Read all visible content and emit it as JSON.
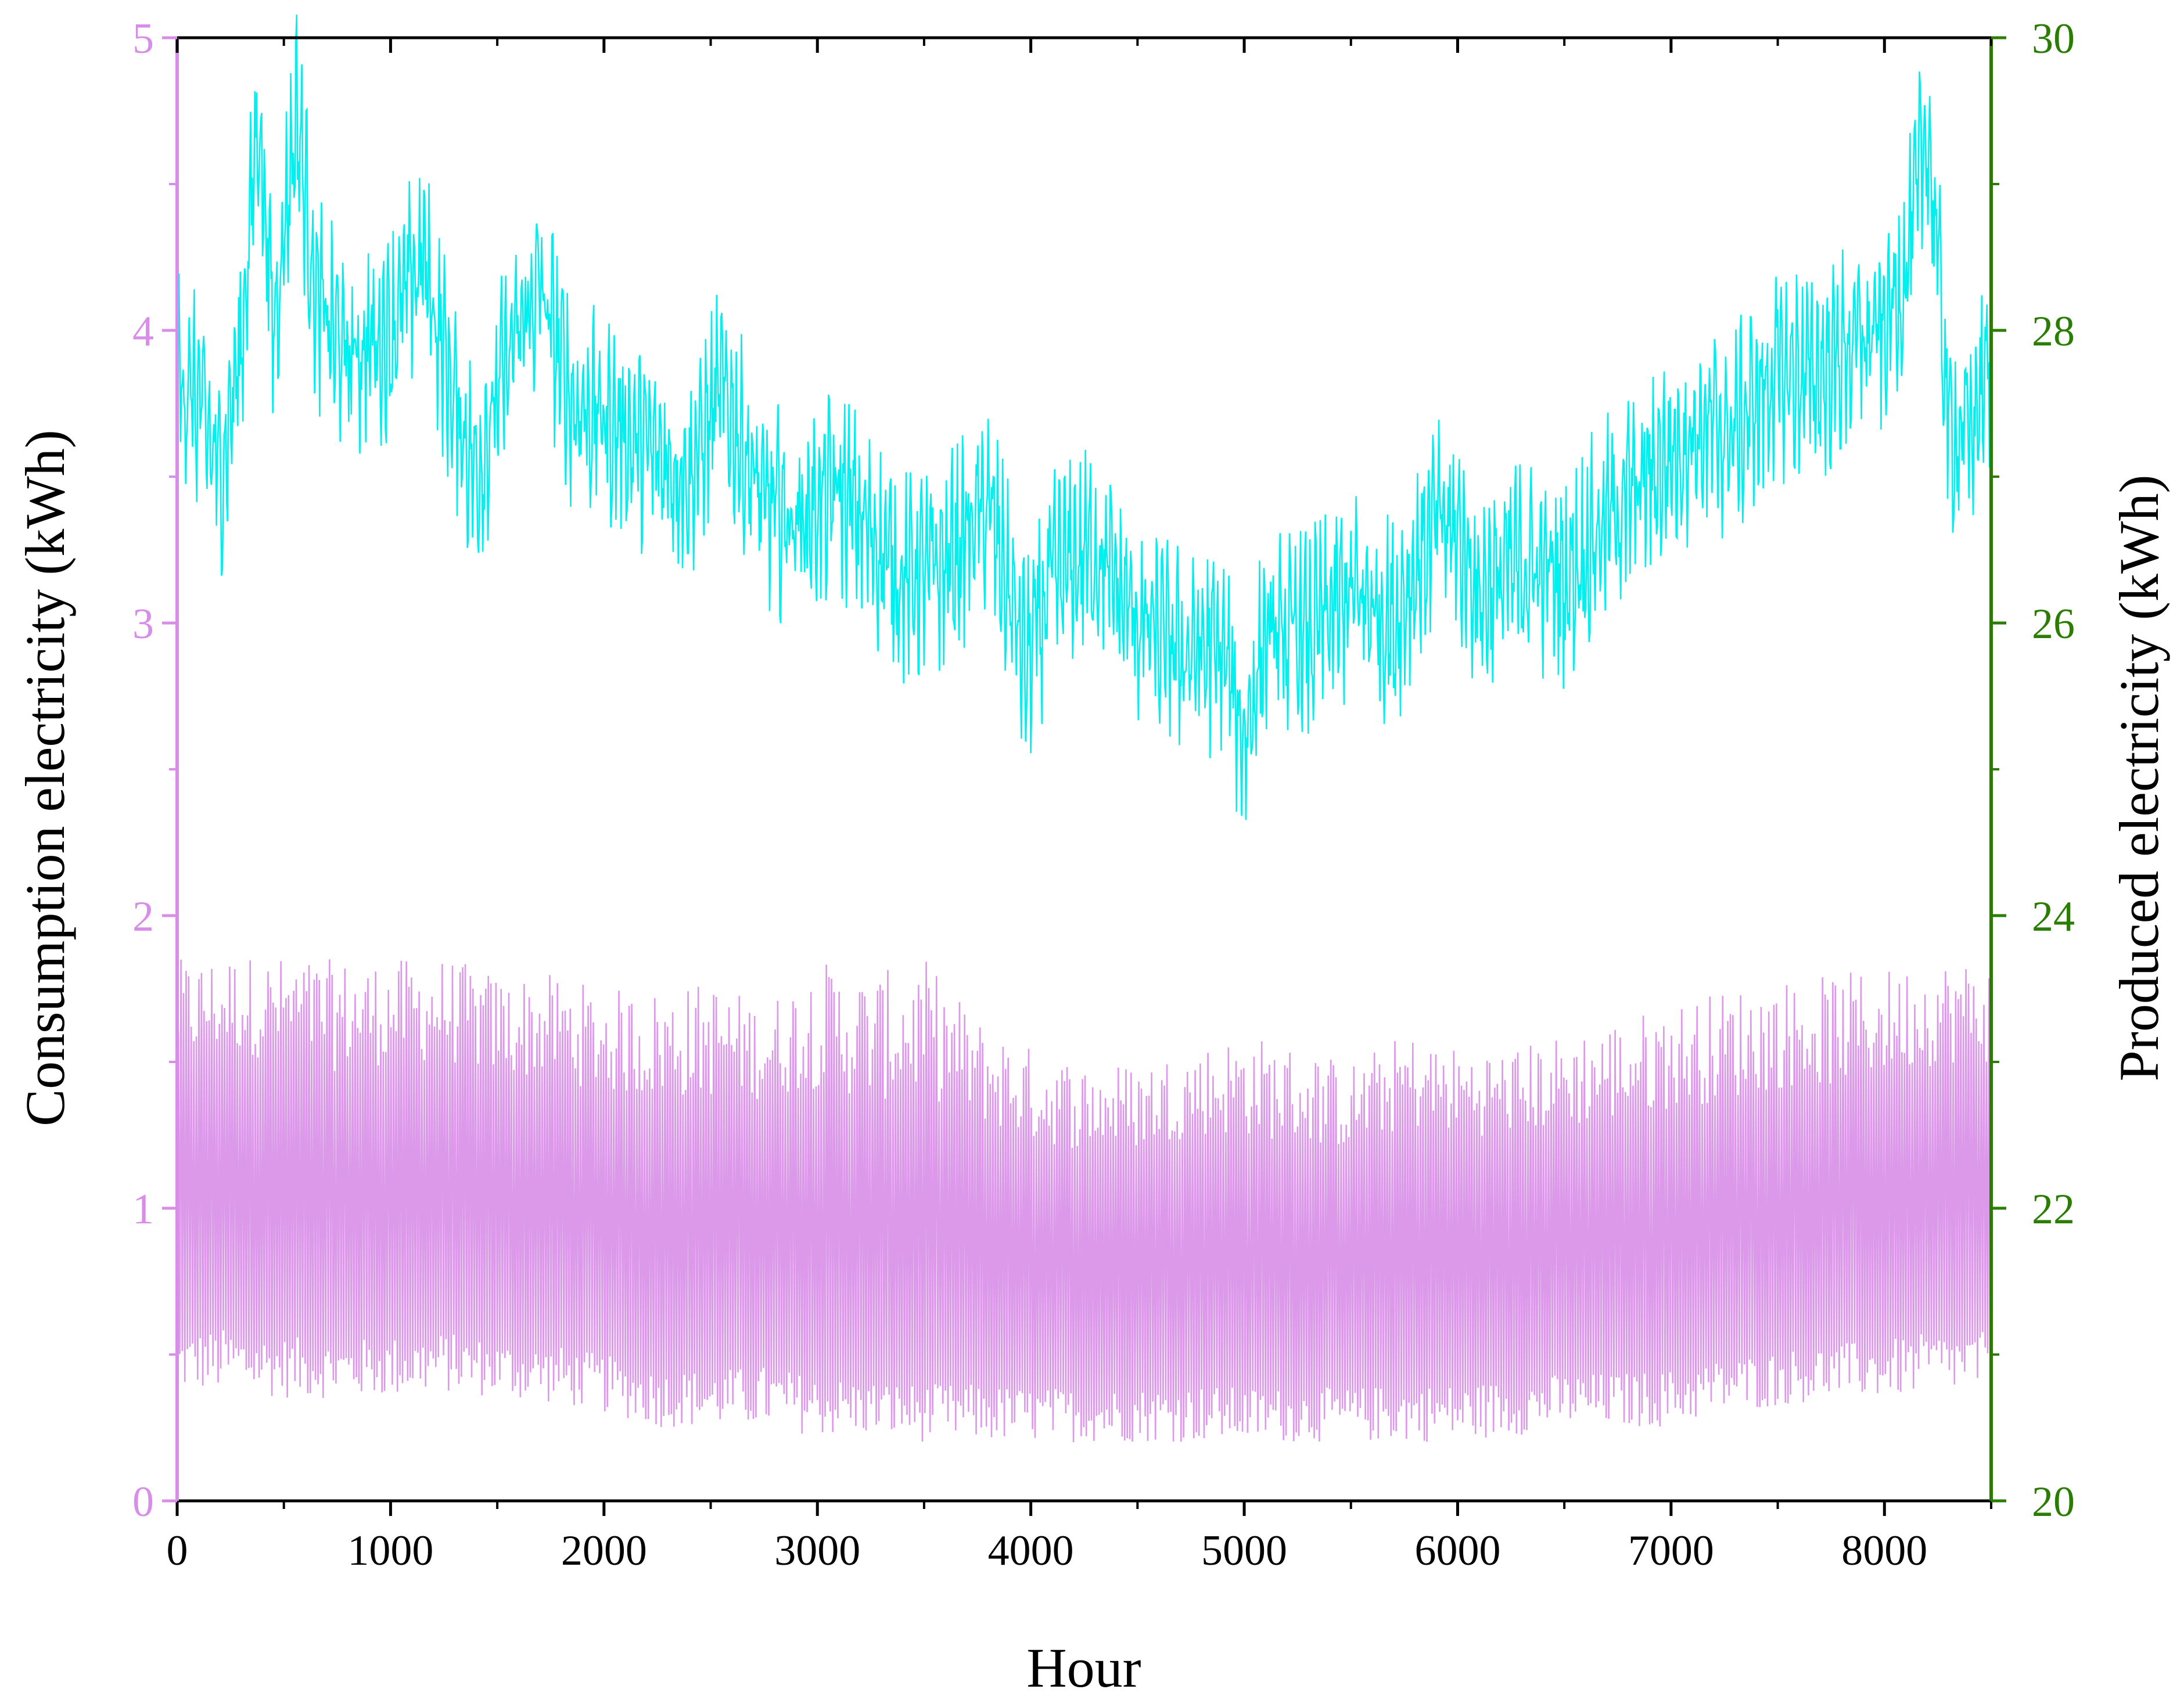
{
  "chart_data": {
    "type": "line",
    "title": "",
    "xlabel": "Hour",
    "ylabel_left": "Consumption electricity (kWh)",
    "ylabel_right": "Produced electricity (kWh)",
    "xlim": [
      0,
      8500
    ],
    "ylim_left": [
      0,
      5
    ],
    "ylim_right": [
      20,
      30
    ],
    "x_ticks": [
      0,
      1000,
      2000,
      3000,
      4000,
      5000,
      6000,
      7000,
      8000
    ],
    "x_tick_labels": [
      "0",
      "1000",
      "2000",
      "3000",
      "4000",
      "5000",
      "6000",
      "7000",
      "8000"
    ],
    "y_left_ticks": [
      0,
      1,
      2,
      3,
      4,
      5
    ],
    "y_left_tick_labels": [
      "0",
      "1",
      "2",
      "3",
      "4",
      "5"
    ],
    "y_right_ticks": [
      20,
      22,
      24,
      26,
      28,
      30
    ],
    "y_right_tick_labels": [
      "20",
      "22",
      "24",
      "26",
      "28",
      "30"
    ],
    "grid": false,
    "legend": "none",
    "colors": {
      "consumption": "#d88ee8",
      "produced": "#00f0f0",
      "left_axis": "#d88ee8",
      "right_axis": "#2a7d00",
      "frame": "#000000"
    },
    "series": [
      {
        "axis": "left",
        "style": "hourly oscillation (min, max envelope per hour block)",
        "x": [
          0,
          250,
          500,
          750,
          1000,
          1250,
          1500,
          1750,
          2000,
          2250,
          2500,
          2750,
          3000,
          3250,
          3500,
          3750,
          4000,
          4250,
          4500,
          4750,
          5000,
          5250,
          5500,
          5750,
          6000,
          6250,
          6500,
          6750,
          7000,
          7250,
          7500,
          7750,
          8000,
          8250,
          8500
        ],
        "min": [
          0.37,
          0.37,
          0.35,
          0.35,
          0.35,
          0.37,
          0.35,
          0.33,
          0.3,
          0.25,
          0.25,
          0.25,
          0.22,
          0.22,
          0.2,
          0.2,
          0.2,
          0.2,
          0.2,
          0.2,
          0.2,
          0.2,
          0.2,
          0.2,
          0.2,
          0.22,
          0.25,
          0.25,
          0.25,
          0.3,
          0.32,
          0.35,
          0.35,
          0.37,
          0.37
        ],
        "max": [
          1.85,
          1.87,
          1.86,
          1.85,
          1.85,
          1.86,
          1.8,
          1.8,
          1.75,
          1.75,
          1.78,
          1.7,
          1.85,
          1.8,
          1.85,
          1.65,
          1.55,
          1.5,
          1.5,
          1.55,
          1.6,
          1.55,
          1.5,
          1.6,
          1.55,
          1.55,
          1.6,
          1.65,
          1.7,
          1.75,
          1.78,
          1.8,
          1.82,
          1.85,
          1.85
        ],
        "mid": [
          1.2,
          1.25,
          1.2,
          1.15,
          1.2,
          1.2,
          1.15,
          1.15,
          1.1,
          1.05,
          1.05,
          1.1,
          1.05,
          1.0,
          1.0,
          1.0,
          0.95,
          0.95,
          0.95,
          1.0,
          0.95,
          0.95,
          0.95,
          1.0,
          1.0,
          1.0,
          1.0,
          1.0,
          1.05,
          1.05,
          1.1,
          1.1,
          1.15,
          1.2,
          1.2
        ]
      },
      {
        "axis": "right",
        "style": "daily fluctuating line",
        "x": [
          0,
          100,
          200,
          300,
          380,
          450,
          560,
          650,
          800,
          1000,
          1150,
          1300,
          1400,
          1550,
          1700,
          1850,
          2000,
          2200,
          2400,
          2550,
          2750,
          2900,
          3100,
          3300,
          3400,
          3600,
          3800,
          3980,
          4100,
          4300,
          4500,
          4700,
          4900,
          5000,
          5100,
          5300,
          5500,
          5700,
          5900,
          6000,
          6100,
          6300,
          6500,
          6700,
          6900,
          7100,
          7300,
          7500,
          7700,
          7850,
          8000,
          8100,
          8200,
          8260,
          8300,
          8400,
          8500
        ],
        "y": [
          27.7,
          27.5,
          27.0,
          27.9,
          29.5,
          28.0,
          29.5,
          28.2,
          27.8,
          28.0,
          28.5,
          27.5,
          27.0,
          27.8,
          28.3,
          27.5,
          27.4,
          27.2,
          27.0,
          27.6,
          26.8,
          26.7,
          26.9,
          26.5,
          26.3,
          26.4,
          26.8,
          25.7,
          26.3,
          26.5,
          26.0,
          25.8,
          25.8,
          25.2,
          25.9,
          25.9,
          26.2,
          26.0,
          26.7,
          26.6,
          26.2,
          26.4,
          26.3,
          26.7,
          27.0,
          27.3,
          27.3,
          27.7,
          27.7,
          27.9,
          28.0,
          28.4,
          29.4,
          28.3,
          27.3,
          27.3,
          27.8
        ]
      }
    ]
  }
}
